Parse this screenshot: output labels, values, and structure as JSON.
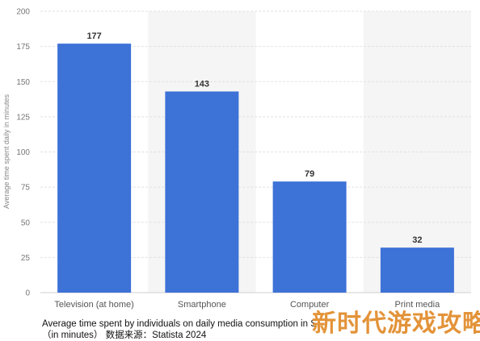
{
  "chart_data": {
    "type": "bar",
    "categories": [
      "Television (at home)",
      "Smartphone",
      "Computer",
      "Print media"
    ],
    "values": [
      177,
      143,
      79,
      32
    ],
    "title": "",
    "xlabel": "",
    "ylabel": "Average time spent daily in minutes",
    "ylim": [
      0,
      200
    ],
    "yticks": [
      0,
      25,
      50,
      75,
      100,
      125,
      150,
      175,
      200
    ],
    "grid": true,
    "legend": "none",
    "bar_color": "#3d72d7"
  },
  "caption": {
    "line1": "Average time spent by individuals on daily media consumption in S",
    "line2": "（in minutes）  数据来源：Statista 2024"
  },
  "watermark": "新时代游戏攻略",
  "colors": {
    "bar": "#3d72d7",
    "grid": "#e2e2e2",
    "band": "#f5f5f5",
    "watermark": "#e18a28"
  }
}
